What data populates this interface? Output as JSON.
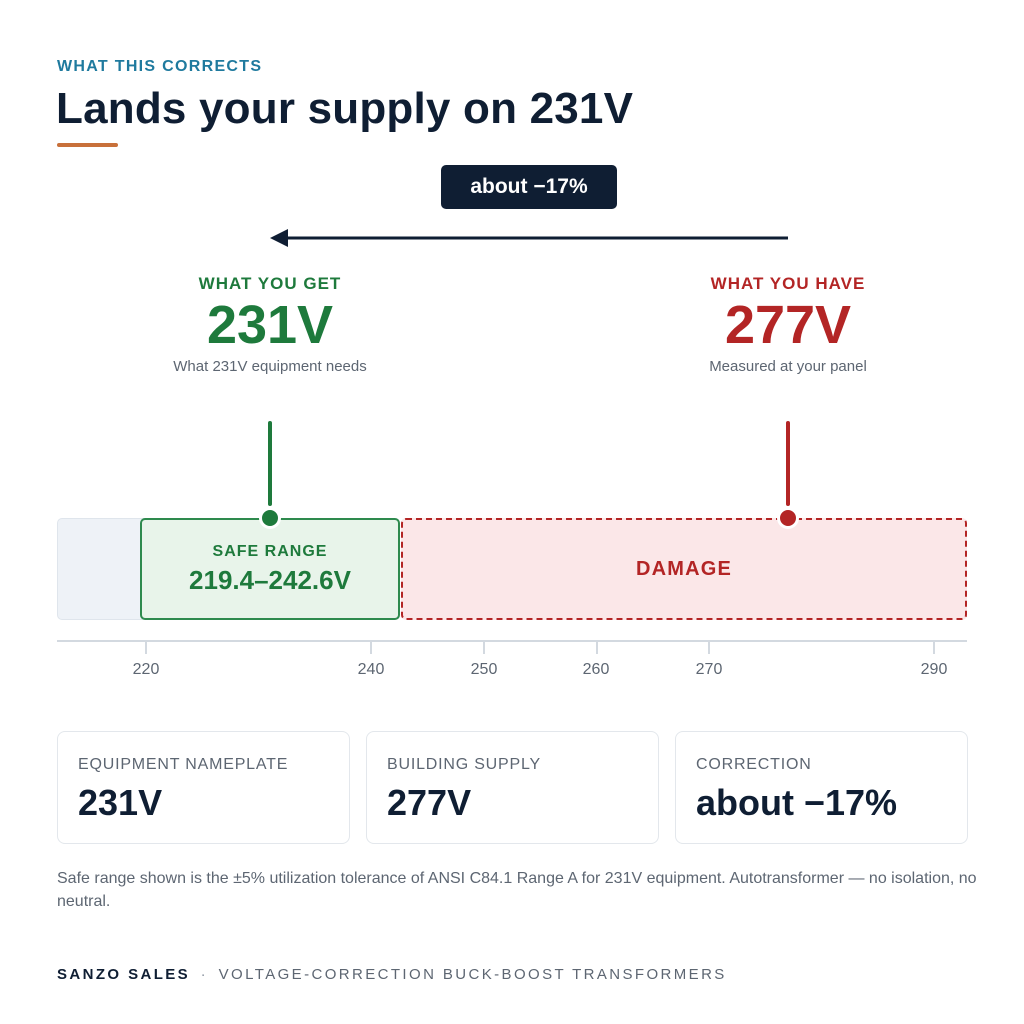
{
  "header": {
    "eyebrow": "WHAT THIS CORRECTS",
    "title": "Lands your supply on 231V"
  },
  "correction_badge": "about −17%",
  "target": {
    "label": "WHAT YOU GET",
    "value": "231V",
    "caption": "What 231V equipment needs",
    "color": "#1e7a3c"
  },
  "current": {
    "label": "WHAT YOU HAVE",
    "value": "277V",
    "caption": "Measured at your panel",
    "color": "#b32525"
  },
  "scale": {
    "safe_label": "SAFE RANGE",
    "safe_range": "219.4–242.6V",
    "damage_label": "DAMAGE",
    "ticks": [
      "220",
      "240",
      "250",
      "260",
      "270",
      "290"
    ]
  },
  "stats": [
    {
      "label": "EQUIPMENT NAMEPLATE",
      "value": "231V"
    },
    {
      "label": "BUILDING SUPPLY",
      "value": "277V"
    },
    {
      "label": "CORRECTION",
      "value": "about −17%"
    }
  ],
  "footnote": "Safe range shown is the ±5% utilization tolerance of ANSI C84.1 Range A for 231V equipment. Autotransformer — no isolation, no neutral.",
  "brand": {
    "name": "SANZO SALES",
    "separator": "·",
    "tagline": "VOLTAGE-CORRECTION BUCK-BOOST TRANSFORMERS"
  },
  "colors": {
    "navy": "#0f1e33",
    "accent": "#c8703a",
    "eyebrow": "#1f7a9e",
    "safe": "#1e7a3c",
    "danger": "#b32525"
  }
}
